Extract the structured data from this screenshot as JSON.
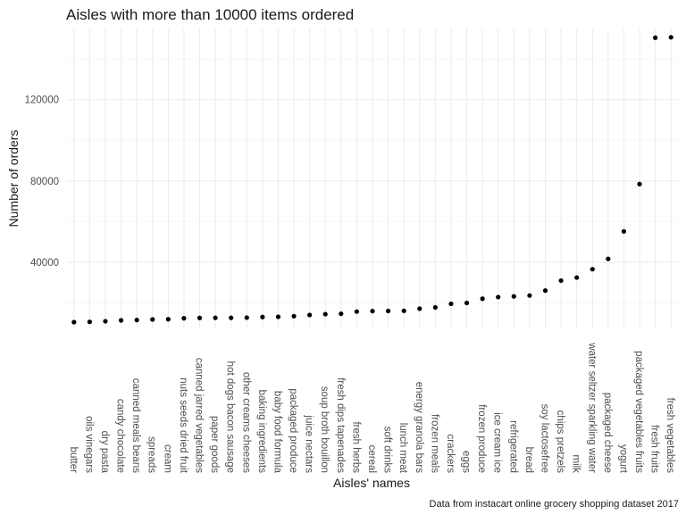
{
  "chart_data": {
    "type": "scatter",
    "title": "Aisles with more than 10000 items ordered",
    "xlabel": "Aisles' names",
    "ylabel": "Number of orders",
    "caption": "Data from instacart online grocery shopping dataset 2017",
    "ylim": [
      7500,
      155000
    ],
    "yticks": [
      40000,
      80000,
      120000
    ],
    "ytick_labels": [
      "40000",
      "80000",
      "120000"
    ],
    "grid": true,
    "legend": "none",
    "point_color": "#000000",
    "categories": [
      "butter",
      "oils vinegars",
      "dry pasta",
      "candy chocolate",
      "canned meals beans",
      "spreads",
      "cream",
      "nuts seeds dried fruit",
      "canned jarred vegetables",
      "paper goods",
      "hot dogs bacon sausage",
      "other creams cheeses",
      "baking ingredients",
      "baby food formula",
      "packaged produce",
      "juice nectars",
      "soup broth bouillon",
      "fresh dips tapenades",
      "fresh herbs",
      "cereal",
      "soft drinks",
      "lunch meat",
      "energy granola bars",
      "frozen meals",
      "crackers",
      "eggs",
      "frozen produce",
      "ice cream ice",
      "refrigerated",
      "bread",
      "soy lactosefree",
      "chips pretzels",
      "milk",
      "water seltzer sparkling water",
      "packaged cheese",
      "yogurt",
      "packaged vegetables fruits",
      "fresh fruits",
      "fresh vegetables"
    ],
    "values": [
      10575,
      10700,
      11000,
      11450,
      11600,
      11900,
      12000,
      12500,
      12650,
      12700,
      12700,
      12800,
      13100,
      13200,
      13500,
      14100,
      14500,
      14700,
      15750,
      16000,
      16050,
      16150,
      17200,
      17800,
      19600,
      20000,
      22100,
      22900,
      23250,
      23650,
      26100,
      31000,
      32500,
      36600,
      41700,
      55200,
      78500,
      150500,
      150700
    ]
  }
}
